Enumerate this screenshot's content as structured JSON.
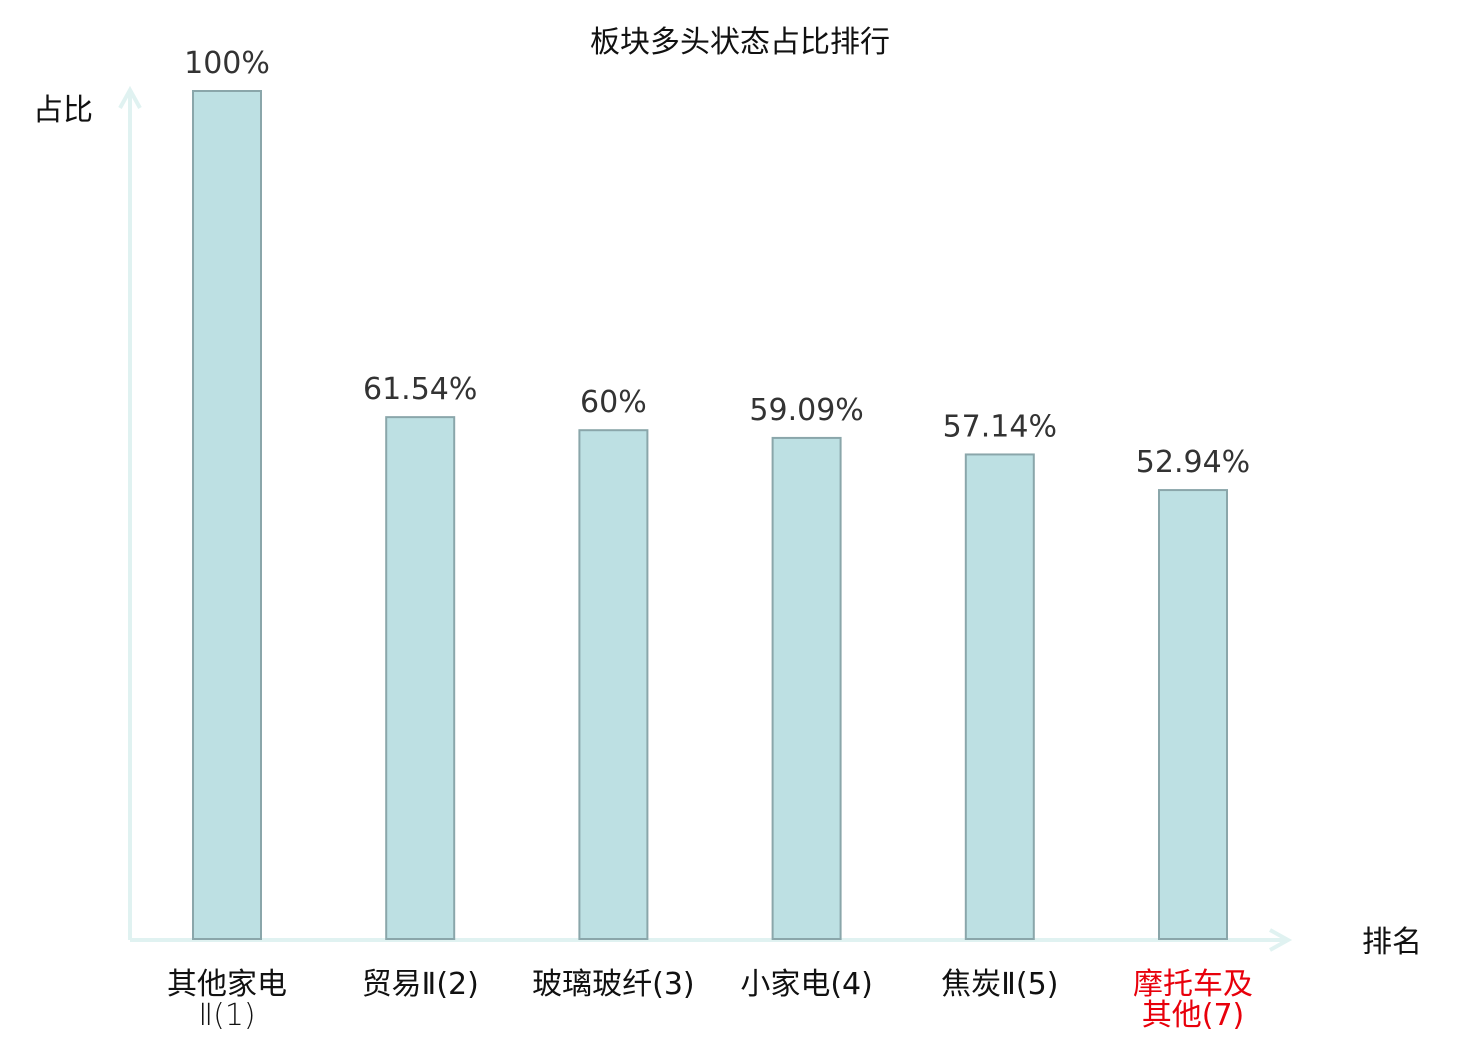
{
  "chart_data": {
    "type": "bar",
    "title": "板块多头状态占比排行",
    "ylabel": "占比",
    "xlabel": "排名",
    "ylim": [
      0,
      100
    ],
    "grid": false,
    "categories": [
      {
        "main": "其他家电",
        "rank": "Ⅱ(1)",
        "highlight": false
      },
      {
        "main": "贸易Ⅱ",
        "rank": "(2)",
        "highlight": false
      },
      {
        "main": "玻璃玻纤",
        "rank": "(3)",
        "highlight": false
      },
      {
        "main": "小家电",
        "rank": "(4)",
        "highlight": false
      },
      {
        "main": "焦炭Ⅱ",
        "rank": "(5)",
        "highlight": false
      },
      {
        "main": "摩托车及",
        "main2": "其他",
        "rank": "(7)",
        "highlight": true
      }
    ],
    "values": [
      100,
      61.54,
      60,
      59.09,
      57.14,
      52.94
    ],
    "value_labels": [
      "100%",
      "61.54%",
      "60%",
      "59.09%",
      "57.14%",
      "52.94%"
    ],
    "colors": {
      "bar_fill": "#bde0e3",
      "bar_stroke": "#8aa6aa",
      "axis": "#e0f2f1",
      "highlight_text": "#e8000b",
      "text": "#111111",
      "value_text": "#333333"
    }
  }
}
